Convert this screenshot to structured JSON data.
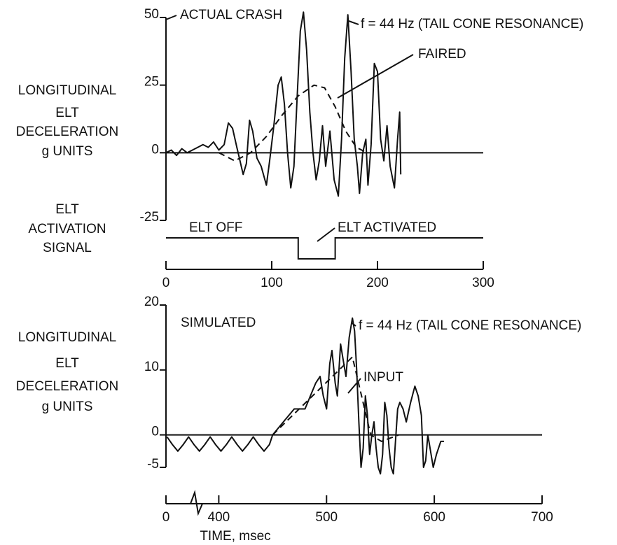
{
  "chart_data": [
    {
      "type": "line",
      "ylabel": [
        "LONGITUDINAL",
        "ELT",
        "DECELERATION",
        "g UNITS"
      ],
      "annotations": [
        "ACTUAL CRASH",
        "f = 44 Hz (TAIL CONE RESONANCE)",
        "FAIRED"
      ],
      "xlim": [
        0,
        300
      ],
      "ylim": [
        -25,
        50
      ],
      "yticks": [
        50,
        25,
        0,
        -25
      ],
      "series": [
        {
          "color": "#111111",
          "dash": false,
          "x": [
            0,
            5,
            10,
            15,
            20,
            25,
            30,
            35,
            40,
            45,
            50,
            55,
            59,
            63,
            67,
            70,
            73,
            76,
            79,
            82,
            86,
            90,
            95,
            98,
            102,
            106,
            109,
            112,
            115,
            118,
            121,
            124,
            127,
            130,
            133,
            136,
            139,
            142,
            145,
            148,
            151,
            155,
            159,
            163,
            166,
            169,
            172,
            175,
            178,
            181,
            183,
            186,
            189,
            191,
            194,
            197,
            200,
            203,
            206,
            209,
            212,
            216,
            219,
            221,
            222
          ],
          "values": [
            0,
            1,
            -1,
            1.5,
            0,
            1,
            2,
            3,
            2,
            4,
            1,
            3,
            11,
            9,
            2,
            -3,
            -8,
            -4,
            12,
            8,
            -2,
            -5,
            -12,
            -3,
            10,
            25,
            28,
            18,
            0,
            -13,
            -5,
            20,
            45,
            52,
            38,
            15,
            0,
            -10,
            -3,
            10,
            -5,
            8,
            -10,
            -16,
            5,
            35,
            51,
            30,
            5,
            -5,
            -15,
            0,
            5,
            -12,
            3,
            33,
            30,
            5,
            -3,
            10,
            -5,
            -13,
            5,
            15,
            -8
          ]
        },
        {
          "color": "#111111",
          "dash": true,
          "x": [
            50,
            65,
            80,
            95,
            110,
            125,
            140,
            150,
            160,
            170,
            180,
            190
          ],
          "values": [
            0,
            -3,
            0,
            6,
            14,
            21,
            25,
            24,
            17,
            8,
            2,
            0
          ]
        }
      ]
    },
    {
      "type": "step",
      "ylabel": [
        "ELT",
        "ACTIVATION",
        "SIGNAL"
      ],
      "annotations": [
        "ELT  OFF",
        "ELT ACTIVATED"
      ],
      "xlim": [
        0,
        300
      ],
      "ylim": [
        0,
        1
      ],
      "xticks": [
        0,
        100,
        200,
        300
      ],
      "color": "#111111",
      "x": [
        0,
        125,
        125,
        160,
        160,
        300
      ],
      "values": [
        1,
        1,
        0,
        0,
        1,
        1
      ]
    },
    {
      "type": "line",
      "ylabel": [
        "LONGITUDINAL",
        "ELT",
        "DECELERATION",
        "g UNITS"
      ],
      "annotations": [
        "SIMULATED",
        "f = 44 Hz (TAIL CONE RESONANCE)",
        "INPUT"
      ],
      "xlabel": "TIME,  msec",
      "axis_break": true,
      "xlim": [
        351,
        700
      ],
      "ylim": [
        -5,
        20
      ],
      "yticks": [
        20,
        10,
        0,
        -5
      ],
      "xticks": [
        0,
        400,
        500,
        600,
        700
      ],
      "series": [
        {
          "color": "#111111",
          "dash": false,
          "x": [
            352,
            357,
            362,
            367,
            372,
            377,
            382,
            387,
            392,
            397,
            402,
            407,
            412,
            417,
            422,
            427,
            432,
            437,
            442,
            447,
            450,
            460,
            470,
            480,
            485,
            490,
            494,
            497,
            500,
            503,
            505,
            508,
            510,
            513,
            515,
            518,
            521,
            524,
            526,
            528,
            530,
            532,
            534,
            536,
            538,
            540,
            542,
            544,
            546,
            548,
            550,
            552,
            554,
            556,
            558,
            560,
            562,
            564,
            566,
            568,
            571,
            574,
            578,
            582,
            585,
            588,
            590,
            592,
            594,
            596,
            599,
            602,
            606,
            609
          ],
          "values": [
            -0.3,
            -1.5,
            -2.5,
            -1.5,
            -0.3,
            -1.5,
            -2.5,
            -1.5,
            -0.3,
            -1.5,
            -2.5,
            -1.5,
            -0.3,
            -1.5,
            -2.5,
            -1.5,
            -0.3,
            -1.5,
            -2.5,
            -1.5,
            0,
            2,
            4,
            4,
            6,
            8,
            9,
            6,
            4,
            11,
            13,
            8,
            6,
            14,
            12,
            9,
            15,
            18,
            16,
            10,
            2,
            -5,
            -2,
            6,
            3,
            -3,
            0,
            2,
            -2,
            -5,
            -6,
            -3,
            5,
            3,
            -2,
            -5,
            -6,
            -1,
            4,
            5,
            4,
            2,
            5,
            7.5,
            6,
            3,
            -5,
            -4,
            0,
            -2,
            -5,
            -3,
            -1,
            -1
          ]
        },
        {
          "color": "#111111",
          "dash": true,
          "x": [
            450,
            524,
            541,
            551,
            567
          ],
          "values": [
            0,
            12,
            0,
            -1,
            0
          ]
        }
      ]
    }
  ]
}
